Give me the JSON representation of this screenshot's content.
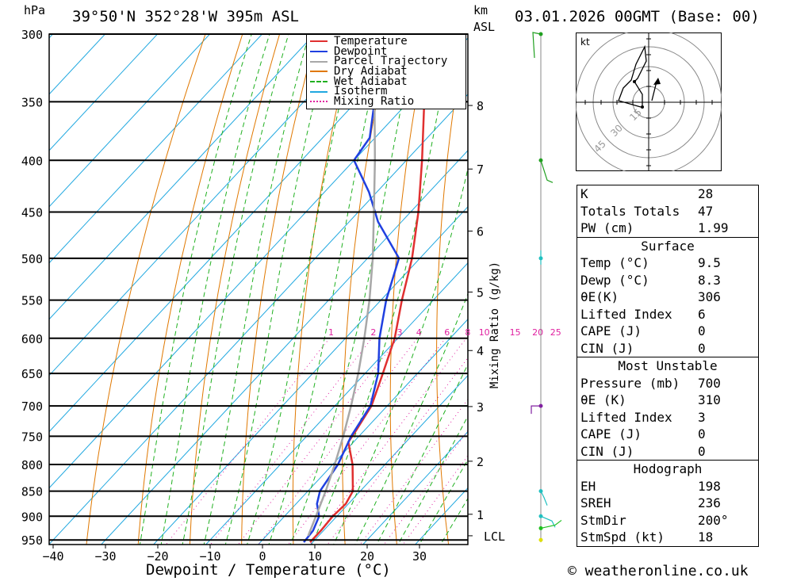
{
  "header": {
    "location": "39°50'N 352°28'W 395m ASL",
    "datetime": "03.01.2026 00GMT (Base: 00)",
    "hpa_label": "hPa",
    "km_label": "km",
    "asl_label": "ASL"
  },
  "axes": {
    "xlabel": "Dewpoint / Temperature (°C)",
    "mixing_ratio_label": "Mixing Ratio (g/kg)",
    "lcl_label": "LCL"
  },
  "legend": [
    {
      "label": "Temperature",
      "color": "#e03030",
      "style": "solid"
    },
    {
      "label": "Dewpoint",
      "color": "#2040e0",
      "style": "solid"
    },
    {
      "label": "Parcel Trajectory",
      "color": "#a8a8a8",
      "style": "solid"
    },
    {
      "label": "Dry Adiabat",
      "color": "#e07800",
      "style": "solid"
    },
    {
      "label": "Wet Adiabat",
      "color": "#20b020",
      "style": "dashed"
    },
    {
      "label": "Isotherm",
      "color": "#20a8e0",
      "style": "solid"
    },
    {
      "label": "Mixing Ratio",
      "color": "#e020a0",
      "style": "dotted"
    }
  ],
  "chart_data": {
    "type": "line",
    "title": "Skew-T log-P diagram",
    "xlabel": "Dewpoint / Temperature (°C)",
    "ylabel": "hPa",
    "pressure_levels": [
      300,
      350,
      400,
      450,
      500,
      550,
      600,
      650,
      700,
      750,
      800,
      850,
      900,
      950
    ],
    "x_ticks": [
      -40,
      -30,
      -20,
      -10,
      0,
      10,
      20,
      30
    ],
    "km_ticks": [
      {
        "km": "8",
        "p": 353
      },
      {
        "km": "7",
        "p": 408
      },
      {
        "km": "6",
        "p": 470
      },
      {
        "km": "5",
        "p": 540
      },
      {
        "km": "4",
        "p": 617
      },
      {
        "km": "3",
        "p": 701
      },
      {
        "km": "2",
        "p": 794
      },
      {
        "km": "1",
        "p": 896
      },
      {
        "km": "LCL",
        "p": 941
      }
    ],
    "mixing_ratio_values": [
      "1",
      "2",
      "3",
      "4",
      "6",
      "8",
      "10",
      "15",
      "20",
      "25"
    ],
    "series": [
      {
        "name": "Temperature",
        "color": "#e03030",
        "points": [
          [
            955,
            9.5
          ],
          [
            930,
            9.5
          ],
          [
            900,
            9.2
          ],
          [
            875,
            9.5
          ],
          [
            850,
            8.6
          ],
          [
            800,
            3.8
          ],
          [
            760,
            -1.0
          ],
          [
            740,
            -1.6
          ],
          [
            700,
            -3.0
          ],
          [
            650,
            -6.6
          ],
          [
            600,
            -10.6
          ],
          [
            550,
            -16.0
          ],
          [
            500,
            -21.5
          ],
          [
            450,
            -28.5
          ],
          [
            400,
            -37.0
          ],
          [
            350,
            -47.0
          ],
          [
            300,
            -57.5
          ]
        ]
      },
      {
        "name": "Dewpoint",
        "color": "#2040e0",
        "points": [
          [
            955,
            8.3
          ],
          [
            930,
            8.0
          ],
          [
            900,
            6.6
          ],
          [
            875,
            4.0
          ],
          [
            850,
            2.3
          ],
          [
            800,
            1.0
          ],
          [
            750,
            -1.5
          ],
          [
            700,
            -3.2
          ],
          [
            650,
            -7.5
          ],
          [
            600,
            -13.5
          ],
          [
            550,
            -19.0
          ],
          [
            500,
            -24.0
          ],
          [
            460,
            -34.5
          ],
          [
            430,
            -41.5
          ],
          [
            400,
            -50.0
          ],
          [
            380,
            -51.0
          ],
          [
            350,
            -56.5
          ],
          [
            300,
            -64.5
          ]
        ]
      },
      {
        "name": "Parcel Trajectory",
        "color": "#a8a8a8",
        "points": [
          [
            941,
            8.0
          ],
          [
            900,
            6.0
          ],
          [
            850,
            3.4
          ],
          [
            800,
            0.4
          ],
          [
            750,
            -3.0
          ],
          [
            700,
            -6.9
          ],
          [
            650,
            -11.3
          ],
          [
            600,
            -16.4
          ],
          [
            550,
            -22.2
          ],
          [
            500,
            -29.0
          ],
          [
            450,
            -37.0
          ],
          [
            400,
            -46.0
          ],
          [
            350,
            -56.5
          ],
          [
            320,
            -63.0
          ]
        ]
      }
    ],
    "wind_barbs": [
      {
        "p": 300,
        "color": "#20a020"
      },
      {
        "p": 400,
        "color": "#20a020"
      },
      {
        "p": 500,
        "color": "#20c0c0"
      },
      {
        "p": 700,
        "color": "#8020a0"
      },
      {
        "p": 850,
        "color": "#20c0c0"
      },
      {
        "p": 900,
        "color": "#20c0c0"
      },
      {
        "p": 925,
        "color": "#20c020"
      },
      {
        "p": 950,
        "color": "#e0e000"
      }
    ],
    "hodograph": {
      "unit": "kt",
      "rings": [
        "15",
        "30",
        "45"
      ]
    }
  },
  "indices": {
    "basic": [
      {
        "label": "K",
        "value": "28"
      },
      {
        "label": "Totals Totals",
        "value": "47"
      },
      {
        "label": "PW (cm)",
        "value": "1.99"
      }
    ],
    "surface": {
      "title": "Surface",
      "rows": [
        {
          "label": "Temp (°C)",
          "value": "9.5"
        },
        {
          "label": "Dewp (°C)",
          "value": "8.3"
        },
        {
          "label": "θE(K)",
          "value": "306"
        },
        {
          "label": "Lifted Index",
          "value": "6"
        },
        {
          "label": "CAPE (J)",
          "value": "0"
        },
        {
          "label": "CIN (J)",
          "value": "0"
        }
      ]
    },
    "most_unstable": {
      "title": "Most Unstable",
      "rows": [
        {
          "label": "Pressure (mb)",
          "value": "700"
        },
        {
          "label": "θE (K)",
          "value": "310"
        },
        {
          "label": "Lifted Index",
          "value": "3"
        },
        {
          "label": "CAPE (J)",
          "value": "0"
        },
        {
          "label": "CIN (J)",
          "value": "0"
        }
      ]
    },
    "hodograph": {
      "title": "Hodograph",
      "rows": [
        {
          "label": "EH",
          "value": "198"
        },
        {
          "label": "SREH",
          "value": "236"
        },
        {
          "label": "StmDir",
          "value": "200°"
        },
        {
          "label": "StmSpd (kt)",
          "value": "18"
        }
      ]
    }
  },
  "footer": {
    "copyright": "© weatheronline.co.uk"
  }
}
